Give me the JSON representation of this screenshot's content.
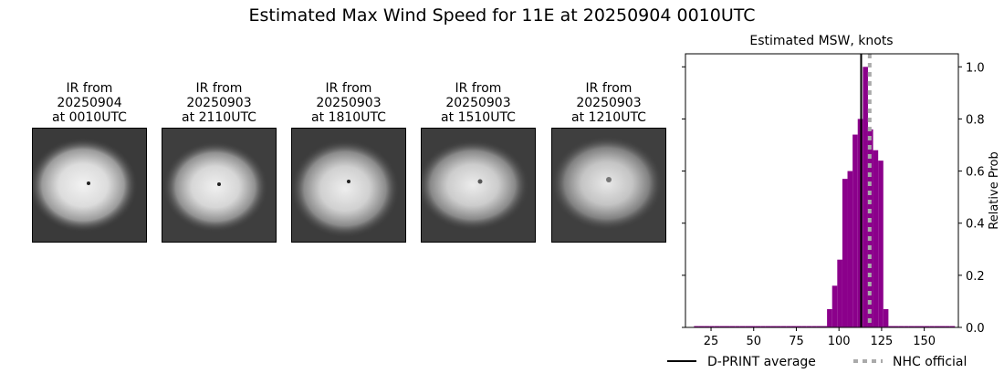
{
  "title": "Estimated Max Wind Speed for 11E at 20250904 0010UTC",
  "ir_panels": [
    {
      "line1": "IR from",
      "line2": "20250904",
      "line3": "at 0010UTC",
      "image": "storm-eye-ir-image"
    },
    {
      "line1": "IR from",
      "line2": "20250903",
      "line3": "at 2110UTC",
      "image": "storm-eye-ir-image"
    },
    {
      "line1": "IR from",
      "line2": "20250903",
      "line3": "at 1810UTC",
      "image": "storm-eye-ir-image"
    },
    {
      "line1": "IR from",
      "line2": "20250903",
      "line3": "at 1510UTC",
      "image": "storm-eye-ir-image"
    },
    {
      "line1": "IR from",
      "line2": "20250903",
      "line3": "at 1210UTC",
      "image": "storm-eye-ir-image"
    }
  ],
  "chart_data": {
    "type": "bar",
    "title": "Estimated MSW, knots",
    "xlabel": "",
    "ylabel": "Relative Prob",
    "xlim": [
      10,
      170
    ],
    "ylim": [
      0,
      1.05
    ],
    "xticks": [
      25,
      50,
      75,
      100,
      125,
      150
    ],
    "yticks": [
      0.0,
      0.2,
      0.4,
      0.6,
      0.8,
      1.0
    ],
    "ytick_labels": [
      "0.0",
      "0.2",
      "0.4",
      "0.6",
      "0.8",
      "1.0"
    ],
    "bar_width": 3,
    "bins": [
      15,
      18,
      21,
      24,
      27,
      30,
      33,
      36,
      39,
      42,
      45,
      48,
      51,
      54,
      57,
      60,
      63,
      66,
      69,
      72,
      75,
      78,
      81,
      84,
      87,
      90,
      93,
      96,
      99,
      102,
      105,
      108,
      111,
      114,
      117,
      120,
      123,
      126,
      129,
      132,
      135,
      138,
      141,
      144,
      147,
      150,
      153,
      156,
      159,
      162,
      165
    ],
    "values": [
      0.005,
      0.005,
      0.005,
      0.005,
      0.005,
      0.005,
      0.005,
      0.005,
      0.005,
      0.005,
      0.005,
      0.005,
      0.005,
      0.005,
      0.005,
      0.005,
      0.005,
      0.005,
      0.005,
      0.005,
      0.005,
      0.005,
      0.005,
      0.005,
      0.005,
      0.005,
      0.07,
      0.16,
      0.26,
      0.57,
      0.6,
      0.74,
      0.8,
      1.0,
      0.76,
      0.68,
      0.64,
      0.07,
      0.005,
      0.005,
      0.005,
      0.005,
      0.005,
      0.005,
      0.005,
      0.005,
      0.005,
      0.005,
      0.005,
      0.005,
      0.005
    ],
    "bar_color": "#8b008b",
    "dprint_average": 113,
    "nhc_official": 118,
    "legend": [
      {
        "label": "D-PRINT average",
        "style": "solid",
        "color": "#000000"
      },
      {
        "label": "NHC official",
        "style": "dotted",
        "color": "#aaaaaa"
      }
    ],
    "legend_position": "bottom"
  }
}
